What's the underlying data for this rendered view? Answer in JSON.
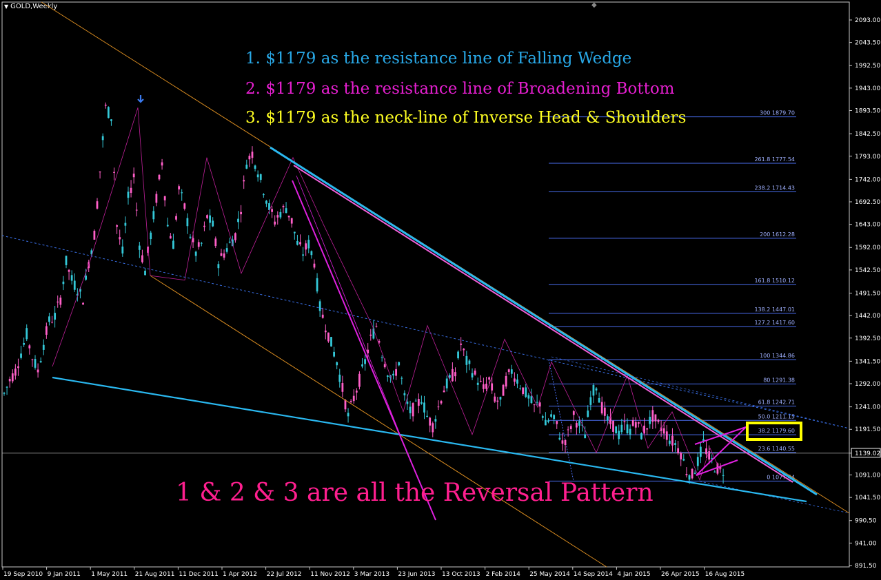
{
  "chart_data": {
    "type": "candlestick",
    "symbol": "GOLD,Weekly",
    "price_axis_ticks": [
      "2093.00",
      "2043.50",
      "1992.50",
      "1943.00",
      "1893.50",
      "1842.50",
      "1793.00",
      "1742.00",
      "1692.50",
      "1643.00",
      "1592.00",
      "1542.50",
      "1491.50",
      "1442.00",
      "1392.50",
      "1341.50",
      "1292.00",
      "1241.00",
      "1191.50",
      "1139.02",
      "1091.00",
      "1041.50",
      "990.50",
      "941.00",
      "891.50"
    ],
    "last_price": "1139.02",
    "time_axis_labels": [
      "19 Sep 2010",
      "9 Jan 2011",
      "1 May 2011",
      "21 Aug 2011",
      "11 Dec 2011",
      "1 Apr 2012",
      "22 Jul 2012",
      "11 Nov 2012",
      "3 Mar 2013",
      "23 Jun 2013",
      "13 Oct 2013",
      "2 Feb 2014",
      "25 May 2014",
      "14 Sep 2014",
      "4 Jan 2015",
      "26 Apr 2015",
      "16 Aug 2015"
    ],
    "fibonacci_levels": [
      {
        "label": "300 1879.70",
        "price": 1879.7
      },
      {
        "label": "261.8 1777.54",
        "price": 1777.54
      },
      {
        "label": "238.2 1714.43",
        "price": 1714.43
      },
      {
        "label": "200 1612.28",
        "price": 1612.28
      },
      {
        "label": "161.8 1510.12",
        "price": 1510.12
      },
      {
        "label": "138.2 1447.01",
        "price": 1447.01
      },
      {
        "label": "127.2 1417.60",
        "price": 1417.6
      },
      {
        "label": "100 1344.86",
        "price": 1344.86
      },
      {
        "label": "80 1291.38",
        "price": 1291.38
      },
      {
        "label": "61.8 1242.71",
        "price": 1242.71
      },
      {
        "label": "50.0 1211.15",
        "price": 1211.15
      },
      {
        "label": "38.2 1179.60",
        "price": 1179.6
      },
      {
        "label": "23.6 1140.55",
        "price": 1140.55
      },
      {
        "label": "0 1077.44",
        "price": 1077.44
      }
    ],
    "price_path": [
      1270,
      1300,
      1320,
      1360,
      1400,
      1350,
      1320,
      1380,
      1430,
      1440,
      1480,
      1560,
      1520,
      1500,
      1480,
      1560,
      1620,
      1760,
      1900,
      1880,
      1640,
      1580,
      1700,
      1750,
      1600,
      1540,
      1620,
      1700,
      1780,
      1640,
      1600,
      1720,
      1680,
      1620,
      1580,
      1600,
      1660,
      1640,
      1560,
      1580,
      1600,
      1620,
      1680,
      1780,
      1800,
      1760,
      1720,
      1680,
      1650,
      1670,
      1680,
      1650,
      1600,
      1580,
      1600,
      1560,
      1460,
      1420,
      1380,
      1340,
      1280,
      1220,
      1260,
      1300,
      1340,
      1390,
      1420,
      1360,
      1320,
      1300,
      1340,
      1260,
      1230,
      1240,
      1260,
      1220,
      1200,
      1240,
      1280,
      1300,
      1320,
      1380,
      1340,
      1320,
      1300,
      1280,
      1300,
      1260,
      1250,
      1300,
      1320,
      1300,
      1280,
      1260,
      1240,
      1250,
      1200,
      1220,
      1200,
      1160,
      1180,
      1220,
      1200,
      1180,
      1260,
      1290,
      1240,
      1210,
      1200,
      1180,
      1200,
      1190,
      1210,
      1180,
      1200,
      1220,
      1200,
      1190,
      1170,
      1160,
      1140,
      1100,
      1090,
      1120,
      1160,
      1130,
      1110,
      1100
    ]
  },
  "symbol_label": "GOLD,Weekly",
  "annotations": {
    "line1": "1.    $1179 as the resistance line of Falling Wedge",
    "line2": "2.   $1179 as the resistance line of Broadening Bottom",
    "line3": "3.   $1179 as the neck-line of Inverse Head & Shoulders",
    "summary": "1 & 2 & 3   are all the Reversal Pattern"
  },
  "colors": {
    "line1": "#29a9e8",
    "line2": "#e61fd0",
    "line3": "#ffff22",
    "summary": "#ff1f8f",
    "bull": "#34c8d8",
    "bear": "#ff5fc8",
    "fib": "#4a6ef0",
    "wedge": "#2ab8f0",
    "magenta": "#e020e0",
    "orange": "#d68a20",
    "highlight": "#ffff00"
  }
}
